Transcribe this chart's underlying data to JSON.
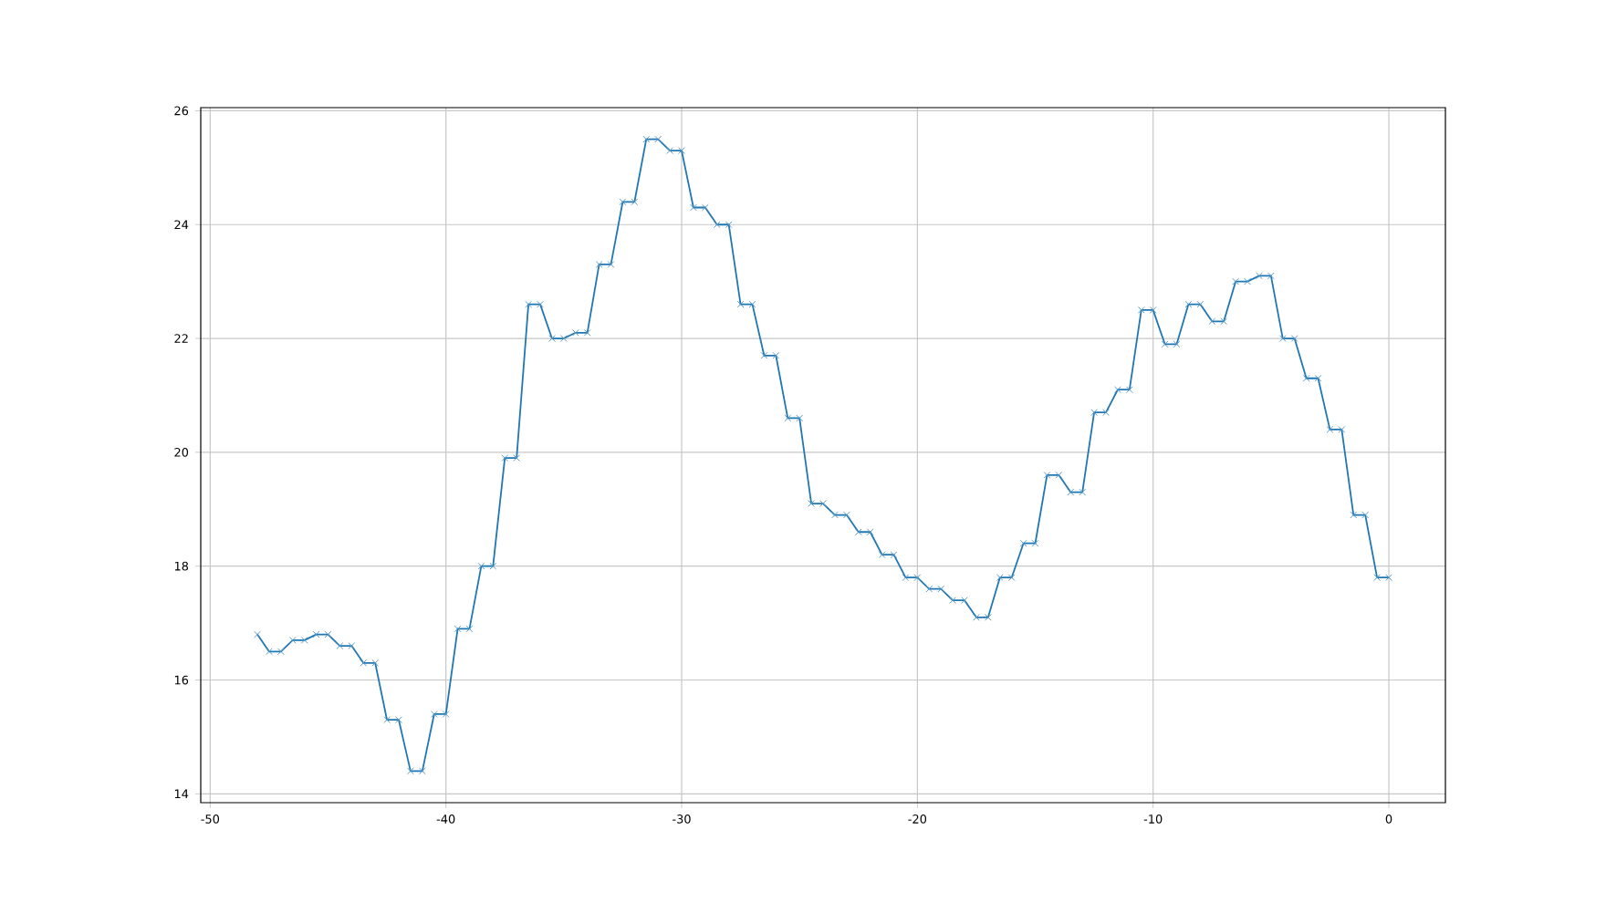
{
  "chart_data": {
    "type": "line",
    "x": [
      -48,
      -47.5,
      -47,
      -46.5,
      -46,
      -45.5,
      -45,
      -44.5,
      -44,
      -43.5,
      -43,
      -42.5,
      -42,
      -41.5,
      -41,
      -40.5,
      -40,
      -39.5,
      -39,
      -38.5,
      -38,
      -37.5,
      -37,
      -36.5,
      -36,
      -35.5,
      -35,
      -34.5,
      -34,
      -33.5,
      -33,
      -32.5,
      -32,
      -31.5,
      -31,
      -30.5,
      -30,
      -29.5,
      -29,
      -28.5,
      -28,
      -27.5,
      -27,
      -26.5,
      -26,
      -25.5,
      -25,
      -24.5,
      -24,
      -23.5,
      -23,
      -22.5,
      -22,
      -21.5,
      -21,
      -20.5,
      -20,
      -19.5,
      -19,
      -18.5,
      -18,
      -17.5,
      -17,
      -16.5,
      -16,
      -15.5,
      -15,
      -14.5,
      -14,
      -13.5,
      -13,
      -12.5,
      -12,
      -11.5,
      -11,
      -10.5,
      -10,
      -9.5,
      -9,
      -8.5,
      -8,
      -7.5,
      -7,
      -6.5,
      -6,
      -5.5,
      -5,
      -4.5,
      -4,
      -3.5,
      -3,
      -2.5,
      -2,
      -1.5,
      -1,
      -0.5,
      0
    ],
    "series": [
      {
        "color": "#1f77b4",
        "values": [
          16.8,
          16.5,
          16.5,
          16.7,
          16.7,
          16.8,
          16.8,
          16.6,
          16.6,
          16.3,
          16.3,
          15.3,
          15.3,
          14.4,
          14.4,
          15.4,
          15.4,
          16.9,
          16.9,
          18.0,
          18.0,
          19.9,
          19.9,
          22.6,
          22.6,
          22.0,
          22.0,
          22.1,
          22.1,
          23.3,
          23.3,
          24.4,
          24.4,
          25.5,
          25.5,
          25.3,
          25.3,
          24.3,
          24.3,
          24.0,
          24.0,
          22.6,
          22.6,
          21.7,
          21.7,
          20.6,
          20.6,
          19.1,
          19.1,
          18.9,
          18.9,
          18.6,
          18.6,
          18.2,
          18.2,
          17.8,
          17.8,
          17.6,
          17.6,
          17.4,
          17.4,
          17.1,
          17.1,
          17.8,
          17.8,
          18.4,
          18.4,
          19.6,
          19.6,
          19.3,
          19.3,
          20.7,
          20.7,
          21.1,
          21.1,
          22.5,
          22.5,
          21.9,
          21.9,
          22.6,
          22.6,
          22.3,
          22.3,
          23.0,
          23.0,
          23.1,
          23.1,
          22.0,
          22.0,
          21.3,
          21.3,
          20.4,
          20.4,
          18.9,
          18.9,
          17.8,
          17.8
        ]
      }
    ],
    "xlim": [
      -50.4,
      2.4
    ],
    "ylim": [
      13.845,
      26.055
    ],
    "xticks": [
      -50,
      -40,
      -30,
      -20,
      -10,
      0
    ],
    "yticks": [
      14,
      16,
      18,
      20,
      22,
      24,
      26
    ],
    "grid": true,
    "marker": "cross",
    "line_style": "solid"
  }
}
